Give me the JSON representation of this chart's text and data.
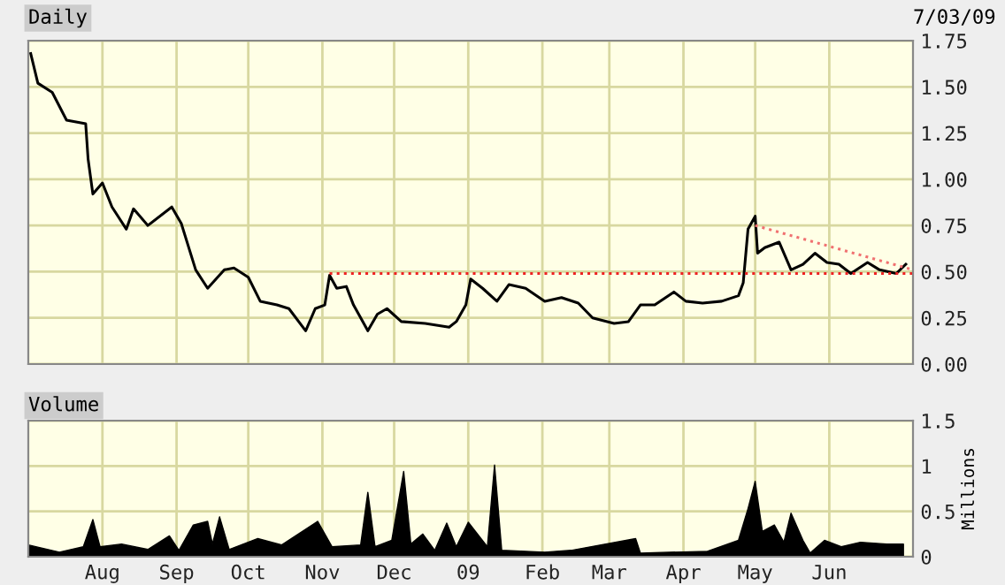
{
  "chart_data": [
    {
      "type": "line",
      "title": "Daily",
      "annotations": [
        "7/03/09"
      ],
      "grid": true,
      "tick_labels": "y",
      "legend": false,
      "xlim": [
        "2008-07-01",
        "2009-07-06"
      ],
      "xticks": [
        {
          "value": "2008-08-01",
          "label": null
        },
        {
          "value": "2008-09-01",
          "label": null
        },
        {
          "value": "2008-10-01",
          "label": null
        },
        {
          "value": "2008-11-01",
          "label": null
        },
        {
          "value": "2008-12-01",
          "label": null
        },
        {
          "value": "2009-01-01",
          "label": null
        },
        {
          "value": "2009-02-01",
          "label": null
        },
        {
          "value": "2009-03-01",
          "label": null
        },
        {
          "value": "2009-04-01",
          "label": null
        },
        {
          "value": "2009-05-01",
          "label": null
        },
        {
          "value": "2009-06-01",
          "label": null
        }
      ],
      "ylim": [
        0,
        1.75
      ],
      "yticks": [
        {
          "value": 0,
          "label": "0.00"
        },
        {
          "value": 0.25,
          "label": "0.25"
        },
        {
          "value": 0.5,
          "label": "0.50"
        },
        {
          "value": 0.75,
          "label": "0.75"
        },
        {
          "value": 1.0,
          "label": "1.00"
        },
        {
          "value": 1.25,
          "label": "1.25"
        },
        {
          "value": 1.5,
          "label": "1.50"
        },
        {
          "value": 1.75,
          "label": "1.75"
        }
      ],
      "series": [
        {
          "color": "#000000",
          "line_style": "solid",
          "x": [
            "2008-07-02",
            "2008-07-05",
            "2008-07-11",
            "2008-07-17",
            "2008-07-25",
            "2008-07-26",
            "2008-07-28",
            "2008-08-01",
            "2008-08-05",
            "2008-08-11",
            "2008-08-14",
            "2008-08-20",
            "2008-08-30",
            "2008-09-03",
            "2008-09-09",
            "2008-09-14",
            "2008-09-21",
            "2008-09-25",
            "2008-10-01",
            "2008-10-06",
            "2008-10-13",
            "2008-10-18",
            "2008-10-25",
            "2008-10-29",
            "2008-11-02",
            "2008-11-04",
            "2008-11-07",
            "2008-11-11",
            "2008-11-14",
            "2008-11-20",
            "2008-11-24",
            "2008-11-28",
            "2008-12-04",
            "2008-12-14",
            "2008-12-24",
            "2008-12-27",
            "2008-12-31",
            "2009-01-02",
            "2009-01-07",
            "2009-01-13",
            "2009-01-18",
            "2009-01-25",
            "2009-02-02",
            "2009-02-09",
            "2009-02-16",
            "2009-02-22",
            "2009-03-03",
            "2009-03-09",
            "2009-03-14",
            "2009-03-20",
            "2009-03-28",
            "2009-04-02",
            "2009-04-09",
            "2009-04-17",
            "2009-04-24",
            "2009-04-26",
            "2009-04-28",
            "2009-05-01",
            "2009-05-02",
            "2009-05-05",
            "2009-05-11",
            "2009-05-16",
            "2009-05-21",
            "2009-05-26",
            "2009-05-31",
            "2009-06-05",
            "2009-06-10",
            "2009-06-17",
            "2009-06-22",
            "2009-06-29",
            "2009-07-03"
          ],
          "values": [
            1.68,
            1.52,
            1.47,
            1.32,
            1.3,
            1.11,
            0.92,
            0.98,
            0.85,
            0.73,
            0.84,
            0.75,
            0.85,
            0.76,
            0.51,
            0.41,
            0.51,
            0.52,
            0.47,
            0.34,
            0.32,
            0.3,
            0.18,
            0.3,
            0.32,
            0.48,
            0.41,
            0.42,
            0.32,
            0.18,
            0.27,
            0.3,
            0.23,
            0.22,
            0.2,
            0.23,
            0.32,
            0.46,
            0.41,
            0.34,
            0.43,
            0.41,
            0.34,
            0.36,
            0.33,
            0.25,
            0.22,
            0.23,
            0.32,
            0.32,
            0.39,
            0.34,
            0.33,
            0.34,
            0.37,
            0.44,
            0.73,
            0.8,
            0.6,
            0.63,
            0.66,
            0.51,
            0.54,
            0.6,
            0.55,
            0.54,
            0.49,
            0.55,
            0.51,
            0.49,
            0.54
          ]
        },
        {
          "color": "#ee2222",
          "line_style": "dotted",
          "x": [
            "2008-11-04",
            "2009-07-06"
          ],
          "values": [
            0.49,
            0.49
          ]
        },
        {
          "color": "#f07070",
          "line_style": "dotted",
          "x": [
            "2009-05-01",
            "2009-07-06"
          ],
          "values": [
            0.75,
            0.51
          ]
        }
      ]
    },
    {
      "type": "area",
      "title": "Volume",
      "ylabel": "Millions",
      "grid": true,
      "legend": false,
      "xlim": [
        "2008-07-01",
        "2009-07-06"
      ],
      "xticks": [
        {
          "value": "2008-08-01",
          "label": "Aug"
        },
        {
          "value": "2008-09-01",
          "label": "Sep"
        },
        {
          "value": "2008-10-01",
          "label": "Oct"
        },
        {
          "value": "2008-11-01",
          "label": "Nov"
        },
        {
          "value": "2008-12-01",
          "label": "Dec"
        },
        {
          "value": "2009-01-01",
          "label": "09"
        },
        {
          "value": "2009-02-01",
          "label": "Feb"
        },
        {
          "value": "2009-03-01",
          "label": "Mar"
        },
        {
          "value": "2009-04-01",
          "label": "Apr"
        },
        {
          "value": "2009-05-01",
          "label": "May"
        },
        {
          "value": "2009-06-01",
          "label": "Jun"
        }
      ],
      "ylim": [
        0,
        1.5
      ],
      "yticks": [
        0,
        0.5,
        1,
        1.5
      ],
      "series": [
        {
          "color": "#000000",
          "x": [
            "2008-07-01",
            "2008-07-14",
            "2008-07-24",
            "2008-07-28",
            "2008-07-31",
            "2008-08-09",
            "2008-08-20",
            "2008-08-29",
            "2008-09-02",
            "2008-09-08",
            "2008-09-14",
            "2008-09-16",
            "2008-09-19",
            "2008-09-23",
            "2008-10-05",
            "2008-10-15",
            "2008-10-30",
            "2008-11-05",
            "2008-11-17",
            "2008-11-20",
            "2008-11-23",
            "2008-11-30",
            "2008-12-05",
            "2008-12-08",
            "2008-12-13",
            "2008-12-18",
            "2008-12-23",
            "2008-12-27",
            "2009-01-01",
            "2009-01-09",
            "2009-01-12",
            "2009-01-15",
            "2009-02-02",
            "2009-02-13",
            "2009-03-12",
            "2009-03-14",
            "2009-04-11",
            "2009-04-24",
            "2009-04-28",
            "2009-05-01",
            "2009-05-04",
            "2009-05-09",
            "2009-05-13",
            "2009-05-16",
            "2009-05-21",
            "2009-05-24",
            "2009-05-30",
            "2009-06-06",
            "2009-06-14",
            "2009-06-25",
            "2009-07-02"
          ],
          "values": [
            0.13,
            0.05,
            0.11,
            0.41,
            0.11,
            0.14,
            0.08,
            0.23,
            0.07,
            0.35,
            0.39,
            0.14,
            0.44,
            0.08,
            0.2,
            0.13,
            0.39,
            0.11,
            0.13,
            0.71,
            0.11,
            0.18,
            0.94,
            0.14,
            0.25,
            0.07,
            0.37,
            0.11,
            0.38,
            0.11,
            1.01,
            0.07,
            0.05,
            0.07,
            0.2,
            0.04,
            0.06,
            0.18,
            0.53,
            0.83,
            0.28,
            0.35,
            0.16,
            0.48,
            0.18,
            0.04,
            0.18,
            0.11,
            0.16,
            0.14,
            0.14
          ]
        }
      ]
    }
  ]
}
